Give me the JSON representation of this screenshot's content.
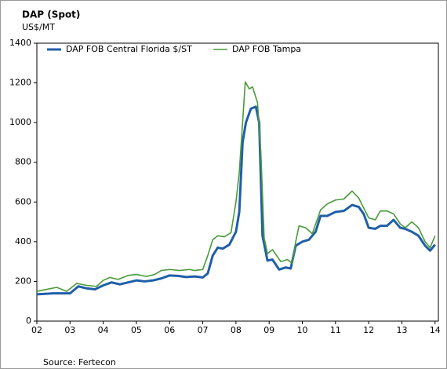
{
  "chart_data": {
    "type": "line",
    "title": "DAP (Spot)",
    "subtitle": "US$/MT",
    "source": "Source: Fertecon",
    "legend": "upper left",
    "xlim": [
      2002,
      2014.1
    ],
    "xticks": [
      {
        "value": 2002,
        "label": "02"
      },
      {
        "value": 2003,
        "label": "03"
      },
      {
        "value": 2004,
        "label": "04"
      },
      {
        "value": 2005,
        "label": "05"
      },
      {
        "value": 2006,
        "label": "06"
      },
      {
        "value": 2007,
        "label": "07"
      },
      {
        "value": 2008,
        "label": "08"
      },
      {
        "value": 2009,
        "label": "09"
      },
      {
        "value": 2010,
        "label": "10"
      },
      {
        "value": 2011,
        "label": "11"
      },
      {
        "value": 2012,
        "label": "12"
      },
      {
        "value": 2013,
        "label": "13"
      },
      {
        "value": 2014,
        "label": "14"
      }
    ],
    "ylim": [
      0,
      1400
    ],
    "yticks": [
      0,
      200,
      400,
      600,
      800,
      1000,
      1200,
      1400
    ],
    "series": [
      {
        "name": "DAP FOB Central Florida $/ST",
        "color": "#1f5fa8",
        "x": [
          2002.0,
          2002.5,
          2003.0,
          2003.25,
          2003.5,
          2003.75,
          2004.0,
          2004.25,
          2004.5,
          2004.75,
          2005.0,
          2005.25,
          2005.5,
          2005.75,
          2006.0,
          2006.25,
          2006.5,
          2006.75,
          2007.0,
          2007.15,
          2007.3,
          2007.45,
          2007.6,
          2007.8,
          2008.0,
          2008.1,
          2008.2,
          2008.3,
          2008.45,
          2008.6,
          2008.7,
          2008.8,
          2008.95,
          2009.1,
          2009.3,
          2009.5,
          2009.65,
          2009.8,
          2010.0,
          2010.2,
          2010.4,
          2010.55,
          2010.75,
          2011.0,
          2011.25,
          2011.5,
          2011.7,
          2011.85,
          2012.0,
          2012.2,
          2012.35,
          2012.55,
          2012.75,
          2012.95,
          2013.1,
          2013.3,
          2013.5,
          2013.7,
          2013.85,
          2014.0
        ],
        "values": [
          135,
          140,
          140,
          175,
          165,
          160,
          180,
          195,
          185,
          195,
          205,
          200,
          205,
          215,
          230,
          228,
          222,
          225,
          220,
          240,
          330,
          370,
          365,
          385,
          450,
          550,
          900,
          1000,
          1070,
          1080,
          1000,
          430,
          305,
          310,
          260,
          270,
          265,
          380,
          400,
          410,
          450,
          530,
          530,
          550,
          555,
          585,
          575,
          540,
          470,
          465,
          480,
          480,
          510,
          470,
          465,
          450,
          430,
          380,
          355,
          385
        ]
      },
      {
        "name": "DAP FOB Tampa",
        "color": "#4a9a3a",
        "x": [
          2002.0,
          2002.3,
          2002.6,
          2002.9,
          2003.2,
          2003.5,
          2003.8,
          2004.0,
          2004.2,
          2004.45,
          2004.75,
          2005.0,
          2005.3,
          2005.55,
          2005.75,
          2006.0,
          2006.3,
          2006.6,
          2006.75,
          2007.0,
          2007.15,
          2007.3,
          2007.45,
          2007.65,
          2007.85,
          2008.0,
          2008.1,
          2008.2,
          2008.28,
          2008.4,
          2008.5,
          2008.65,
          2008.75,
          2008.85,
          2008.95,
          2009.1,
          2009.35,
          2009.55,
          2009.7,
          2009.8,
          2009.9,
          2010.1,
          2010.3,
          2010.55,
          2010.75,
          2011.0,
          2011.25,
          2011.5,
          2011.7,
          2011.85,
          2012.0,
          2012.2,
          2012.35,
          2012.55,
          2012.75,
          2012.95,
          2013.1,
          2013.3,
          2013.5,
          2013.7,
          2013.85,
          2014.0
        ],
        "values": [
          150,
          160,
          170,
          150,
          190,
          180,
          175,
          205,
          220,
          210,
          230,
          235,
          225,
          235,
          255,
          260,
          255,
          260,
          255,
          260,
          330,
          410,
          430,
          425,
          445,
          600,
          750,
          1000,
          1205,
          1170,
          1180,
          1100,
          850,
          420,
          340,
          360,
          300,
          310,
          290,
          400,
          480,
          470,
          440,
          560,
          590,
          610,
          615,
          655,
          620,
          570,
          520,
          510,
          555,
          555,
          540,
          490,
          470,
          500,
          470,
          400,
          370,
          430
        ]
      }
    ]
  }
}
